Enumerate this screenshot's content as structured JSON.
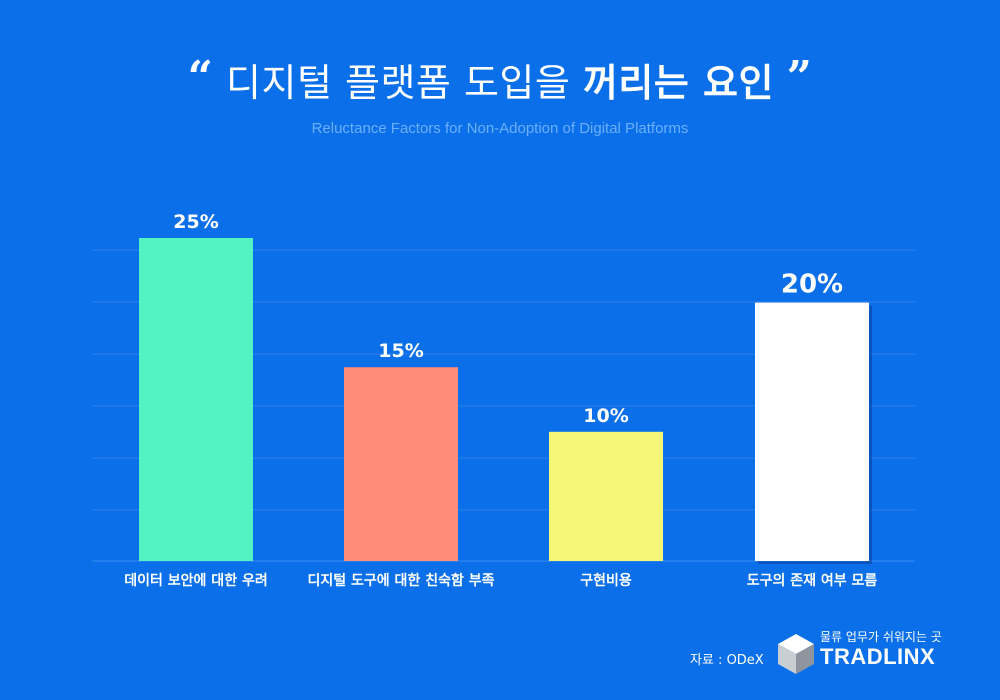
{
  "header": {
    "quote_open": "“",
    "title_light": "디지털 플랫폼 도입을",
    "title_bold": "꺼리는 요인",
    "quote_close": "”",
    "subtitle": "Reluctance Factors for Non-Adoption of Digital Platforms"
  },
  "chart_data": {
    "type": "bar",
    "categories": [
      "데이터 보안에 대한 우려",
      "디지털 도구에 대한 친숙함 부족",
      "구현비용",
      "도구의 존재 여부 모름"
    ],
    "values": [
      25,
      15,
      10,
      20
    ],
    "value_labels": [
      "25%",
      "15%",
      "10%",
      "20%"
    ],
    "colors": [
      "#52f2c2",
      "#ff8a78",
      "#f5f876",
      "#ffffff"
    ],
    "ylim": [
      0,
      30
    ],
    "grid": true
  },
  "footer": {
    "source": "자료 : ODeX",
    "brand_tagline": "물류 업무가 쉬워지는 곳",
    "brand_name": "TRADLINX"
  }
}
